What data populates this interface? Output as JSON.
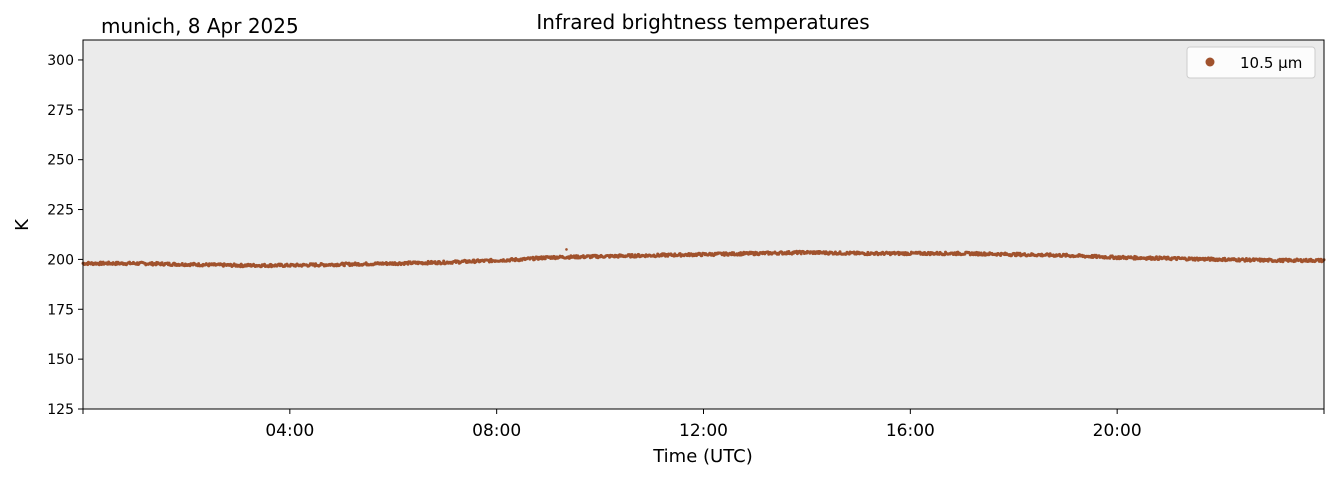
{
  "header": {
    "location_date": "munich, 8 Apr 2025",
    "title": "Infrared brightness temperatures"
  },
  "chart_data": {
    "type": "scatter",
    "title": "Infrared brightness temperatures",
    "subtitle": "munich, 8 Apr 2025",
    "xlabel": "Time (UTC)",
    "ylabel": "K",
    "x_unit": "hours UTC",
    "xlim": [
      0,
      24
    ],
    "ylim": [
      125,
      310
    ],
    "x_ticks": [
      {
        "value": 0,
        "label": ""
      },
      {
        "value": 4,
        "label": "04:00"
      },
      {
        "value": 8,
        "label": "08:00"
      },
      {
        "value": 12,
        "label": "12:00"
      },
      {
        "value": 16,
        "label": "16:00"
      },
      {
        "value": 20,
        "label": "20:00"
      },
      {
        "value": 24,
        "label": ""
      }
    ],
    "y_ticks": [
      125,
      150,
      175,
      200,
      225,
      250,
      275,
      300
    ],
    "grid": false,
    "legend_position": "top-right",
    "background_color": "#ebebeb",
    "series": [
      {
        "name": "10.5 µm",
        "color": "#a0522d",
        "x": [
          0,
          1,
          2,
          3,
          4,
          5,
          6,
          7,
          8,
          8.5,
          9,
          10,
          11,
          12,
          13,
          14,
          15,
          16,
          17,
          18,
          19,
          20,
          21,
          22,
          23,
          24
        ],
        "y": [
          198,
          198,
          197.5,
          197,
          197,
          197.5,
          198,
          198.5,
          199.5,
          200,
          201,
          201.5,
          202,
          202.5,
          203,
          203.5,
          203,
          203,
          203,
          202.5,
          202,
          201,
          200.5,
          200,
          199.5,
          199.5
        ]
      }
    ],
    "outliers": [
      {
        "x": 9.35,
        "y": 205
      }
    ]
  }
}
